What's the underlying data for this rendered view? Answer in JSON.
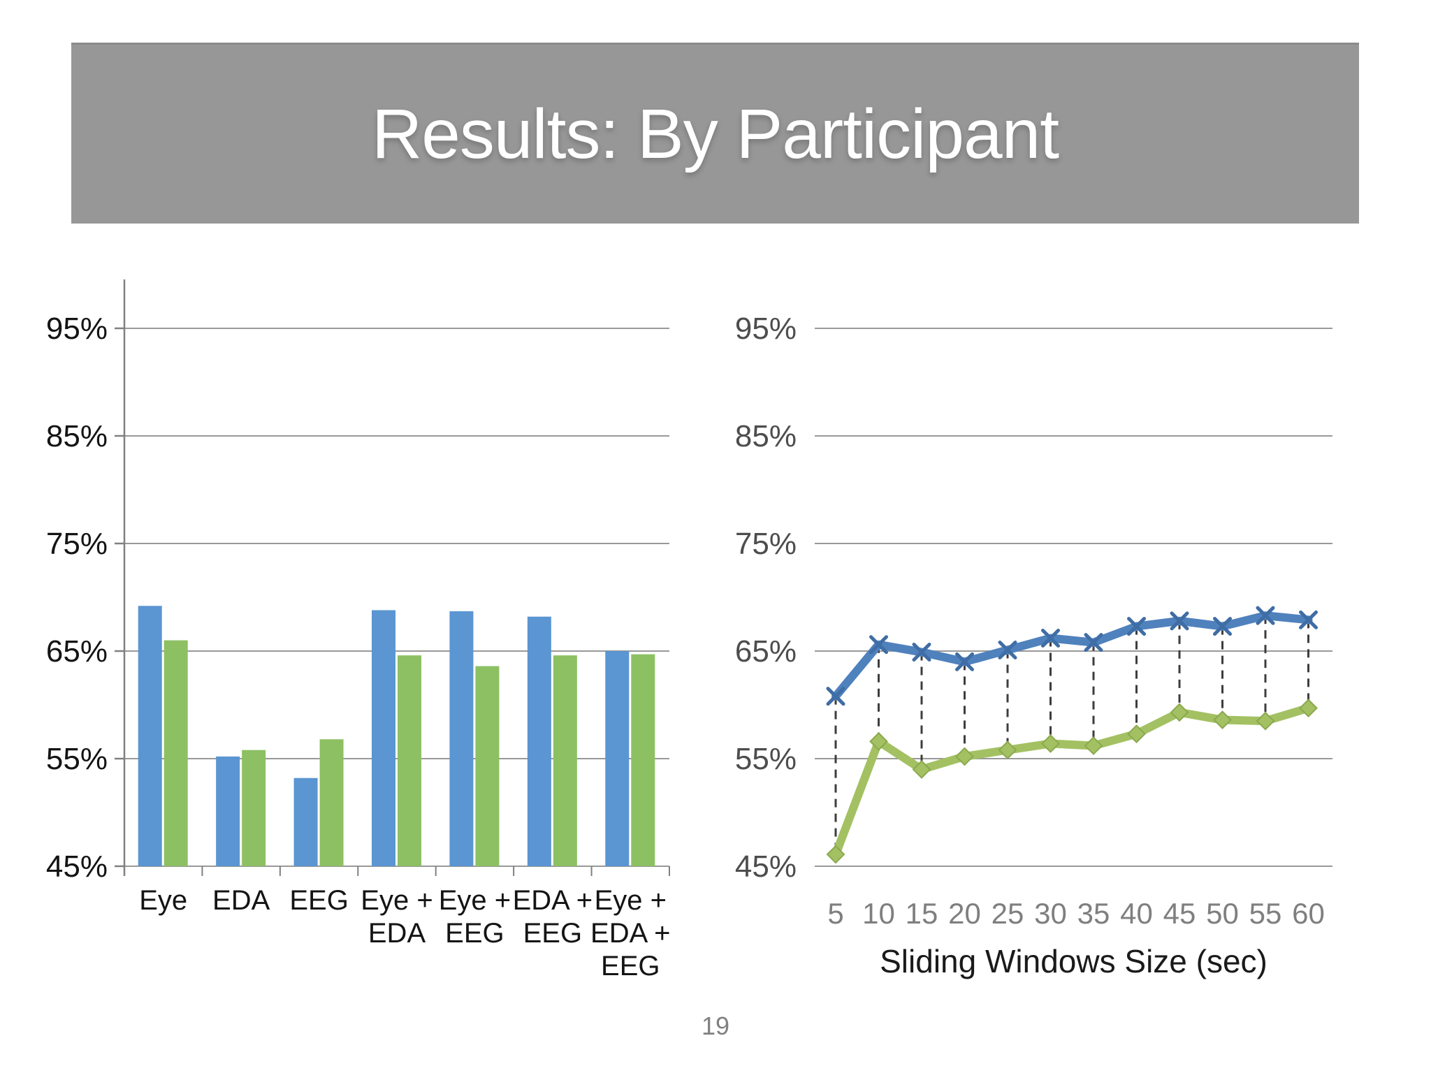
{
  "slide": {
    "title": "Results: By Participant",
    "page_number": "19"
  },
  "colors": {
    "banner_bg": "#979797",
    "title_text": "#ffffff",
    "bar_blue": "#5b95d2",
    "bar_green": "#8dc063",
    "line_blue": "#4f81bd",
    "line_green": "#a3c162",
    "marker_blue": "#3f6da5",
    "marker_green_stroke": "#8aa94e",
    "gridline": "#999999",
    "axis_line": "#808080",
    "left_axis_text": "#141414",
    "right_axis_text": "#4d4d4d",
    "x_number_text": "#7f7f7f",
    "xlabel_text": "#1a1a1a",
    "drop_line": "#3d3d3d",
    "page_number_text": "#808080"
  },
  "chart_data": [
    {
      "type": "bar",
      "title": "",
      "categories": [
        "Eye",
        "EDA",
        "EEG",
        "Eye + EDA",
        "Eye + EEG",
        "EDA + EEG",
        "Eye + EDA + EEG"
      ],
      "category_label_lines": [
        [
          "Eye"
        ],
        [
          "EDA"
        ],
        [
          "EEG"
        ],
        [
          "Eye +",
          "EDA"
        ],
        [
          "Eye +",
          "EEG"
        ],
        [
          "EDA +",
          "EEG"
        ],
        [
          "Eye +",
          "EDA +",
          "EEG"
        ]
      ],
      "series": [
        {
          "name": "blue",
          "color_key": "bar_blue",
          "values": [
            69.2,
            55.2,
            53.2,
            68.8,
            68.7,
            68.2,
            65.0
          ]
        },
        {
          "name": "green",
          "color_key": "bar_green",
          "values": [
            66.0,
            55.8,
            56.8,
            64.6,
            63.6,
            64.6,
            64.7
          ]
        }
      ],
      "ylabel": "",
      "xlabel": "",
      "ylim": [
        45,
        97
      ],
      "y_ticks": [
        95,
        85,
        75,
        65,
        55,
        45
      ],
      "y_tick_labels": [
        "95%",
        "85%",
        "75%",
        "65%",
        "55%",
        "45%"
      ],
      "grid": true,
      "legend": "none"
    },
    {
      "type": "line",
      "title": "",
      "x": [
        5,
        10,
        15,
        20,
        25,
        30,
        35,
        40,
        45,
        50,
        55,
        60
      ],
      "series": [
        {
          "name": "blue",
          "marker": "x",
          "color_key": "line_blue",
          "values": [
            60.8,
            65.6,
            64.9,
            64.0,
            65.1,
            66.2,
            65.8,
            67.3,
            67.8,
            67.3,
            68.3,
            67.9
          ]
        },
        {
          "name": "green",
          "marker": "diamond",
          "color_key": "line_green",
          "values": [
            46.1,
            56.6,
            54.0,
            55.2,
            55.8,
            56.4,
            56.2,
            57.3,
            59.3,
            58.6,
            58.5,
            59.7
          ]
        }
      ],
      "xlabel": "Sliding Windows Size (sec)",
      "ylabel": "",
      "ylim": [
        45,
        97
      ],
      "y_ticks": [
        95,
        85,
        75,
        65,
        55,
        45
      ],
      "y_tick_labels": [
        "95%",
        "85%",
        "75%",
        "65%",
        "55%",
        "45%"
      ],
      "drop_lines": true,
      "grid": true,
      "legend": "none"
    }
  ]
}
